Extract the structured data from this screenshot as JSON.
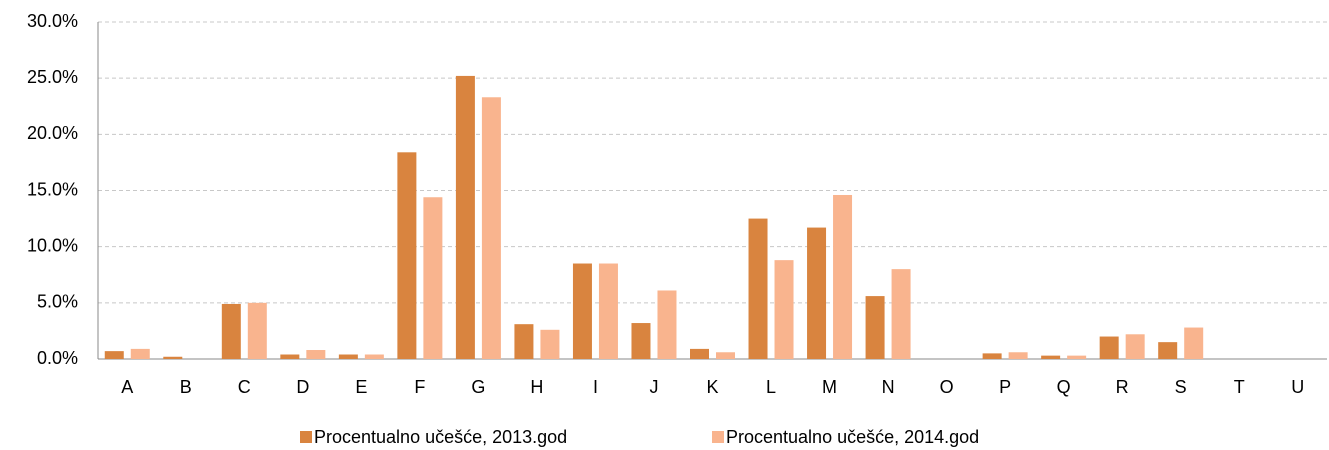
{
  "chart_data": {
    "type": "bar",
    "categories": [
      "A",
      "B",
      "C",
      "D",
      "E",
      "F",
      "G",
      "H",
      "I",
      "J",
      "K",
      "L",
      "M",
      "N",
      "O",
      "P",
      "Q",
      "R",
      "S",
      "T",
      "U"
    ],
    "series": [
      {
        "name": "Procentualno učešće, 2013.god",
        "color": "#d9843f",
        "values": [
          0.7,
          0.2,
          4.9,
          0.4,
          0.4,
          18.4,
          25.2,
          3.1,
          8.5,
          3.2,
          0.9,
          12.5,
          11.7,
          5.6,
          0,
          0.5,
          0.3,
          2.0,
          1.5,
          0,
          0
        ]
      },
      {
        "name": "Procentualno učešće, 2014.god",
        "color": "#f9b48e",
        "values": [
          0.9,
          0,
          5.0,
          0.8,
          0.4,
          14.4,
          23.3,
          2.6,
          8.5,
          6.1,
          0.6,
          8.8,
          14.6,
          8.0,
          0,
          0.6,
          0.3,
          2.2,
          2.8,
          0,
          0
        ]
      }
    ],
    "ylim": [
      0,
      30
    ],
    "yticks": [
      {
        "value": 0,
        "label": "0.0%"
      },
      {
        "value": 5,
        "label": "5.0%"
      },
      {
        "value": 10,
        "label": "10.0%"
      },
      {
        "value": 15,
        "label": "15.0%"
      },
      {
        "value": 20,
        "label": "20.0%"
      },
      {
        "value": 25,
        "label": "25.0%"
      },
      {
        "value": 30,
        "label": "30.0%"
      }
    ],
    "grid": true,
    "legend": "bottom"
  }
}
